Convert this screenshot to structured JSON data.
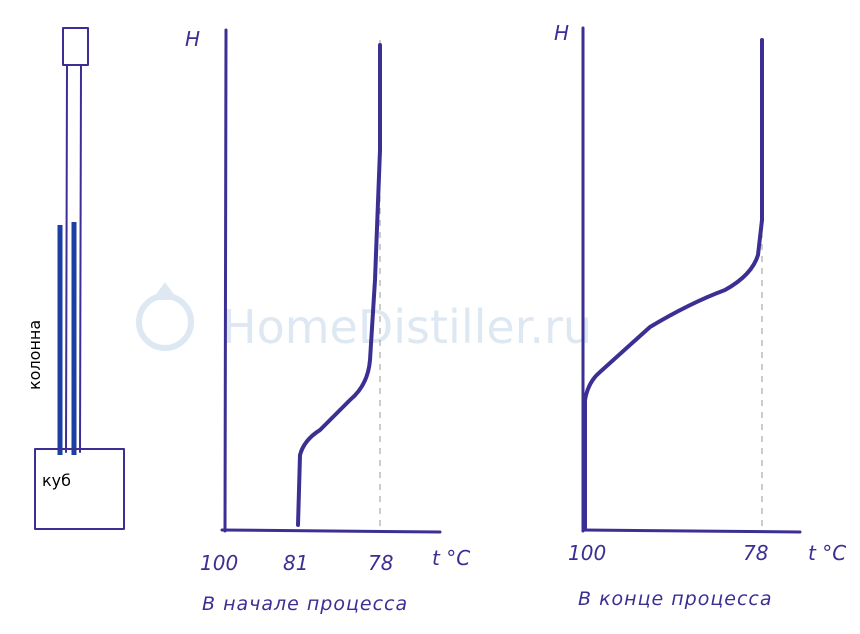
{
  "column": {
    "label": "колонна",
    "cube_label": "куб"
  },
  "charts": [
    {
      "y_label": "H",
      "x_ticks": [
        "100",
        "81",
        "78"
      ],
      "x_label": "t °C",
      "caption": "В начале процесса"
    },
    {
      "y_label": "H",
      "x_ticks": [
        "100",
        "78"
      ],
      "x_label": "t °C",
      "caption": "В конце процесса"
    }
  ],
  "watermark": "HomeDistiller.ru"
}
